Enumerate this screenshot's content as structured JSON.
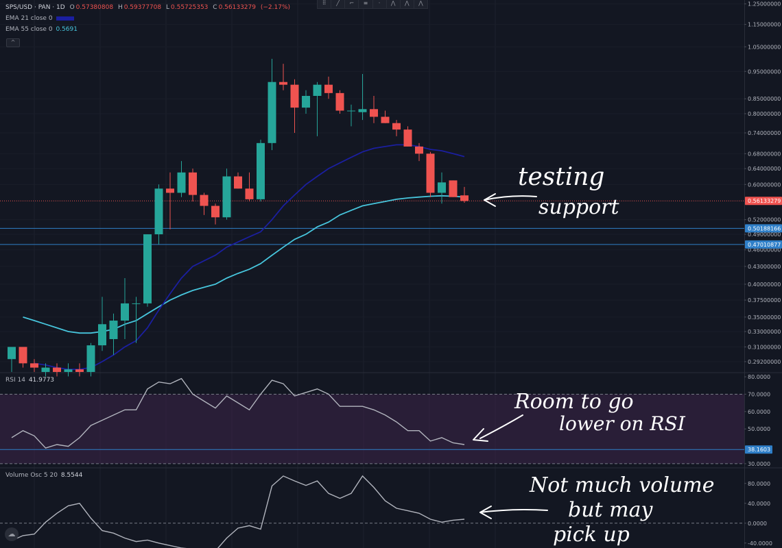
{
  "header": {
    "symbol": "SPS/USD · PAN · 1D",
    "o_label": "O",
    "o": "0.57380808",
    "h_label": "H",
    "h": "0.59377708",
    "l_label": "L",
    "l": "0.55725353",
    "c_label": "C",
    "c": "0.56133279",
    "change": "(−2.17%)"
  },
  "legend": {
    "ema21_label": "EMA 21 close 0",
    "ema55_label": "EMA 55 close 0",
    "ema55_value": "0.5691",
    "rsi_label": "RSI 14",
    "rsi_value": "41.9773",
    "vol_label": "Volume Osc 5 20",
    "vol_value": "8.5544"
  },
  "colors": {
    "background": "#131722",
    "up": "#26a69a",
    "down": "#ef5350",
    "ema21": "#1b1fa0",
    "ema55": "#47c6dd",
    "rsi_line": "#b2b5be",
    "rsi_band": "#3d2448",
    "hline": "#2f7fc8",
    "annotation": "#ffffff"
  },
  "chart_data": [
    {
      "type": "candlestick",
      "scale": "log",
      "ylim": [
        0.28,
        1.27
      ],
      "y_ticks": [
        "1.25000000",
        "1.15000000",
        "1.05000000",
        "0.95000000",
        "0.85000000",
        "0.80000000",
        "0.74000000",
        "0.68000000",
        "0.64000000",
        "0.60000000",
        "0.52000000",
        "0.49000000",
        "0.46000000",
        "0.43000000",
        "0.40000000",
        "0.37500000",
        "0.35000000",
        "0.33000000",
        "0.31000000",
        "0.29200000"
      ],
      "candles": [
        {
          "o": 0.295,
          "h": 0.31,
          "l": 0.28,
          "c": 0.31
        },
        {
          "o": 0.31,
          "h": 0.31,
          "l": 0.285,
          "c": 0.29
        },
        {
          "o": 0.29,
          "h": 0.295,
          "l": 0.28,
          "c": 0.285
        },
        {
          "o": 0.28,
          "h": 0.29,
          "l": 0.275,
          "c": 0.285
        },
        {
          "o": 0.285,
          "h": 0.29,
          "l": 0.275,
          "c": 0.28
        },
        {
          "o": 0.28,
          "h": 0.29,
          "l": 0.275,
          "c": 0.283
        },
        {
          "o": 0.283,
          "h": 0.29,
          "l": 0.275,
          "c": 0.28
        },
        {
          "o": 0.28,
          "h": 0.315,
          "l": 0.275,
          "c": 0.312
        },
        {
          "o": 0.312,
          "h": 0.38,
          "l": 0.305,
          "c": 0.34
        },
        {
          "o": 0.32,
          "h": 0.355,
          "l": 0.3,
          "c": 0.345
        },
        {
          "o": 0.345,
          "h": 0.41,
          "l": 0.32,
          "c": 0.37
        },
        {
          "o": 0.37,
          "h": 0.38,
          "l": 0.315,
          "c": 0.37
        },
        {
          "o": 0.37,
          "h": 0.49,
          "l": 0.365,
          "c": 0.49
        },
        {
          "o": 0.49,
          "h": 0.6,
          "l": 0.47,
          "c": 0.59
        },
        {
          "o": 0.59,
          "h": 0.63,
          "l": 0.5,
          "c": 0.58
        },
        {
          "o": 0.58,
          "h": 0.66,
          "l": 0.57,
          "c": 0.63
        },
        {
          "o": 0.63,
          "h": 0.64,
          "l": 0.56,
          "c": 0.575
        },
        {
          "o": 0.575,
          "h": 0.58,
          "l": 0.53,
          "c": 0.55
        },
        {
          "o": 0.55,
          "h": 0.555,
          "l": 0.51,
          "c": 0.525
        },
        {
          "o": 0.525,
          "h": 0.64,
          "l": 0.52,
          "c": 0.62
        },
        {
          "o": 0.62,
          "h": 0.63,
          "l": 0.59,
          "c": 0.59
        },
        {
          "o": 0.59,
          "h": 0.63,
          "l": 0.56,
          "c": 0.565
        },
        {
          "o": 0.565,
          "h": 0.72,
          "l": 0.56,
          "c": 0.71
        },
        {
          "o": 0.71,
          "h": 1.0,
          "l": 0.69,
          "c": 0.91
        },
        {
          "o": 0.91,
          "h": 0.98,
          "l": 0.88,
          "c": 0.9
        },
        {
          "o": 0.9,
          "h": 0.92,
          "l": 0.74,
          "c": 0.82
        },
        {
          "o": 0.82,
          "h": 0.88,
          "l": 0.8,
          "c": 0.86
        },
        {
          "o": 0.86,
          "h": 0.91,
          "l": 0.73,
          "c": 0.9
        },
        {
          "o": 0.9,
          "h": 0.93,
          "l": 0.85,
          "c": 0.87
        },
        {
          "o": 0.87,
          "h": 0.88,
          "l": 0.8,
          "c": 0.81
        },
        {
          "o": 0.81,
          "h": 0.83,
          "l": 0.76,
          "c": 0.81
        },
        {
          "o": 0.805,
          "h": 0.94,
          "l": 0.78,
          "c": 0.815
        },
        {
          "o": 0.815,
          "h": 0.86,
          "l": 0.77,
          "c": 0.79
        },
        {
          "o": 0.79,
          "h": 0.81,
          "l": 0.77,
          "c": 0.77
        },
        {
          "o": 0.77,
          "h": 0.78,
          "l": 0.73,
          "c": 0.75
        },
        {
          "o": 0.75,
          "h": 0.76,
          "l": 0.7,
          "c": 0.7
        },
        {
          "o": 0.7,
          "h": 0.71,
          "l": 0.66,
          "c": 0.68
        },
        {
          "o": 0.68,
          "h": 0.685,
          "l": 0.57,
          "c": 0.58
        },
        {
          "o": 0.58,
          "h": 0.63,
          "l": 0.555,
          "c": 0.605
        },
        {
          "o": 0.61,
          "h": 0.61,
          "l": 0.57,
          "c": 0.57
        },
        {
          "o": 0.574,
          "h": 0.594,
          "l": 0.557,
          "c": 0.561
        }
      ],
      "ema21": [
        null,
        null,
        0.29,
        0.288,
        0.285,
        0.283,
        0.283,
        0.285,
        0.292,
        0.3,
        0.31,
        0.318,
        0.335,
        0.36,
        0.385,
        0.41,
        0.43,
        0.44,
        0.45,
        0.465,
        0.475,
        0.485,
        0.495,
        0.52,
        0.55,
        0.575,
        0.6,
        0.62,
        0.64,
        0.655,
        0.67,
        0.685,
        0.695,
        0.7,
        0.705,
        0.705,
        0.7,
        0.692,
        0.688,
        0.68,
        0.672
      ],
      "ema55": [
        null,
        0.35,
        0.345,
        0.34,
        0.335,
        0.33,
        0.328,
        0.328,
        0.33,
        0.333,
        0.34,
        0.345,
        0.355,
        0.365,
        0.375,
        0.383,
        0.39,
        0.395,
        0.4,
        0.41,
        0.418,
        0.425,
        0.435,
        0.45,
        0.465,
        0.48,
        0.49,
        0.505,
        0.515,
        0.53,
        0.54,
        0.55,
        0.555,
        0.56,
        0.565,
        0.568,
        0.57,
        0.572,
        0.573,
        0.572,
        0.57
      ],
      "price_lines": [
        0.50188166,
        0.47010877
      ],
      "price_line_labels": [
        "0.50188166",
        "0.47010877"
      ],
      "last_price": 0.56133279,
      "last_price_label": "0.56133279"
    },
    {
      "type": "line",
      "name": "RSI 14",
      "ylim": [
        28,
        82
      ],
      "y_ticks": [
        "80.0000",
        "70.0000",
        "60.0000",
        "50.0000",
        "30.0000"
      ],
      "bands": [
        30,
        70
      ],
      "level_line": 38.1603,
      "level_label": "38.1603",
      "values": [
        45,
        49,
        46,
        39,
        41,
        40,
        45,
        52,
        55,
        58,
        61,
        61,
        73,
        77,
        76,
        79,
        70,
        66,
        62,
        69,
        65,
        61,
        70,
        78,
        76,
        69,
        71,
        73,
        70,
        63,
        63,
        63,
        61,
        58,
        54,
        49,
        49,
        43,
        45,
        42,
        41
      ]
    },
    {
      "type": "line",
      "name": "Volume Osc 5 20",
      "ylim": [
        -50,
        110
      ],
      "y_ticks": [
        "80.0000",
        "40.0000",
        "0.0000",
        "-40.0000"
      ],
      "zero_line": 0,
      "values": [
        -35,
        -25,
        -22,
        2,
        20,
        35,
        40,
        10,
        -15,
        -20,
        -30,
        -37,
        -34,
        -40,
        -45,
        -50,
        -52,
        -55,
        -56,
        -30,
        -10,
        -5,
        -12,
        75,
        95,
        85,
        76,
        85,
        60,
        50,
        60,
        95,
        72,
        45,
        30,
        25,
        20,
        8,
        2,
        6,
        8
      ]
    }
  ],
  "annotations": [
    {
      "lines": [
        "testing",
        "support"
      ]
    },
    {
      "lines": [
        "Room to go",
        "lower on RSI"
      ]
    },
    {
      "lines": [
        "Not much volume",
        "but may",
        "pick up"
      ]
    }
  ],
  "toolbar": {
    "items": [
      "⠿",
      "╱",
      "⌐",
      "≡",
      "·",
      "⋀",
      "⋀",
      "⋀"
    ]
  },
  "collapse_label": "^",
  "logo_label": "☁"
}
